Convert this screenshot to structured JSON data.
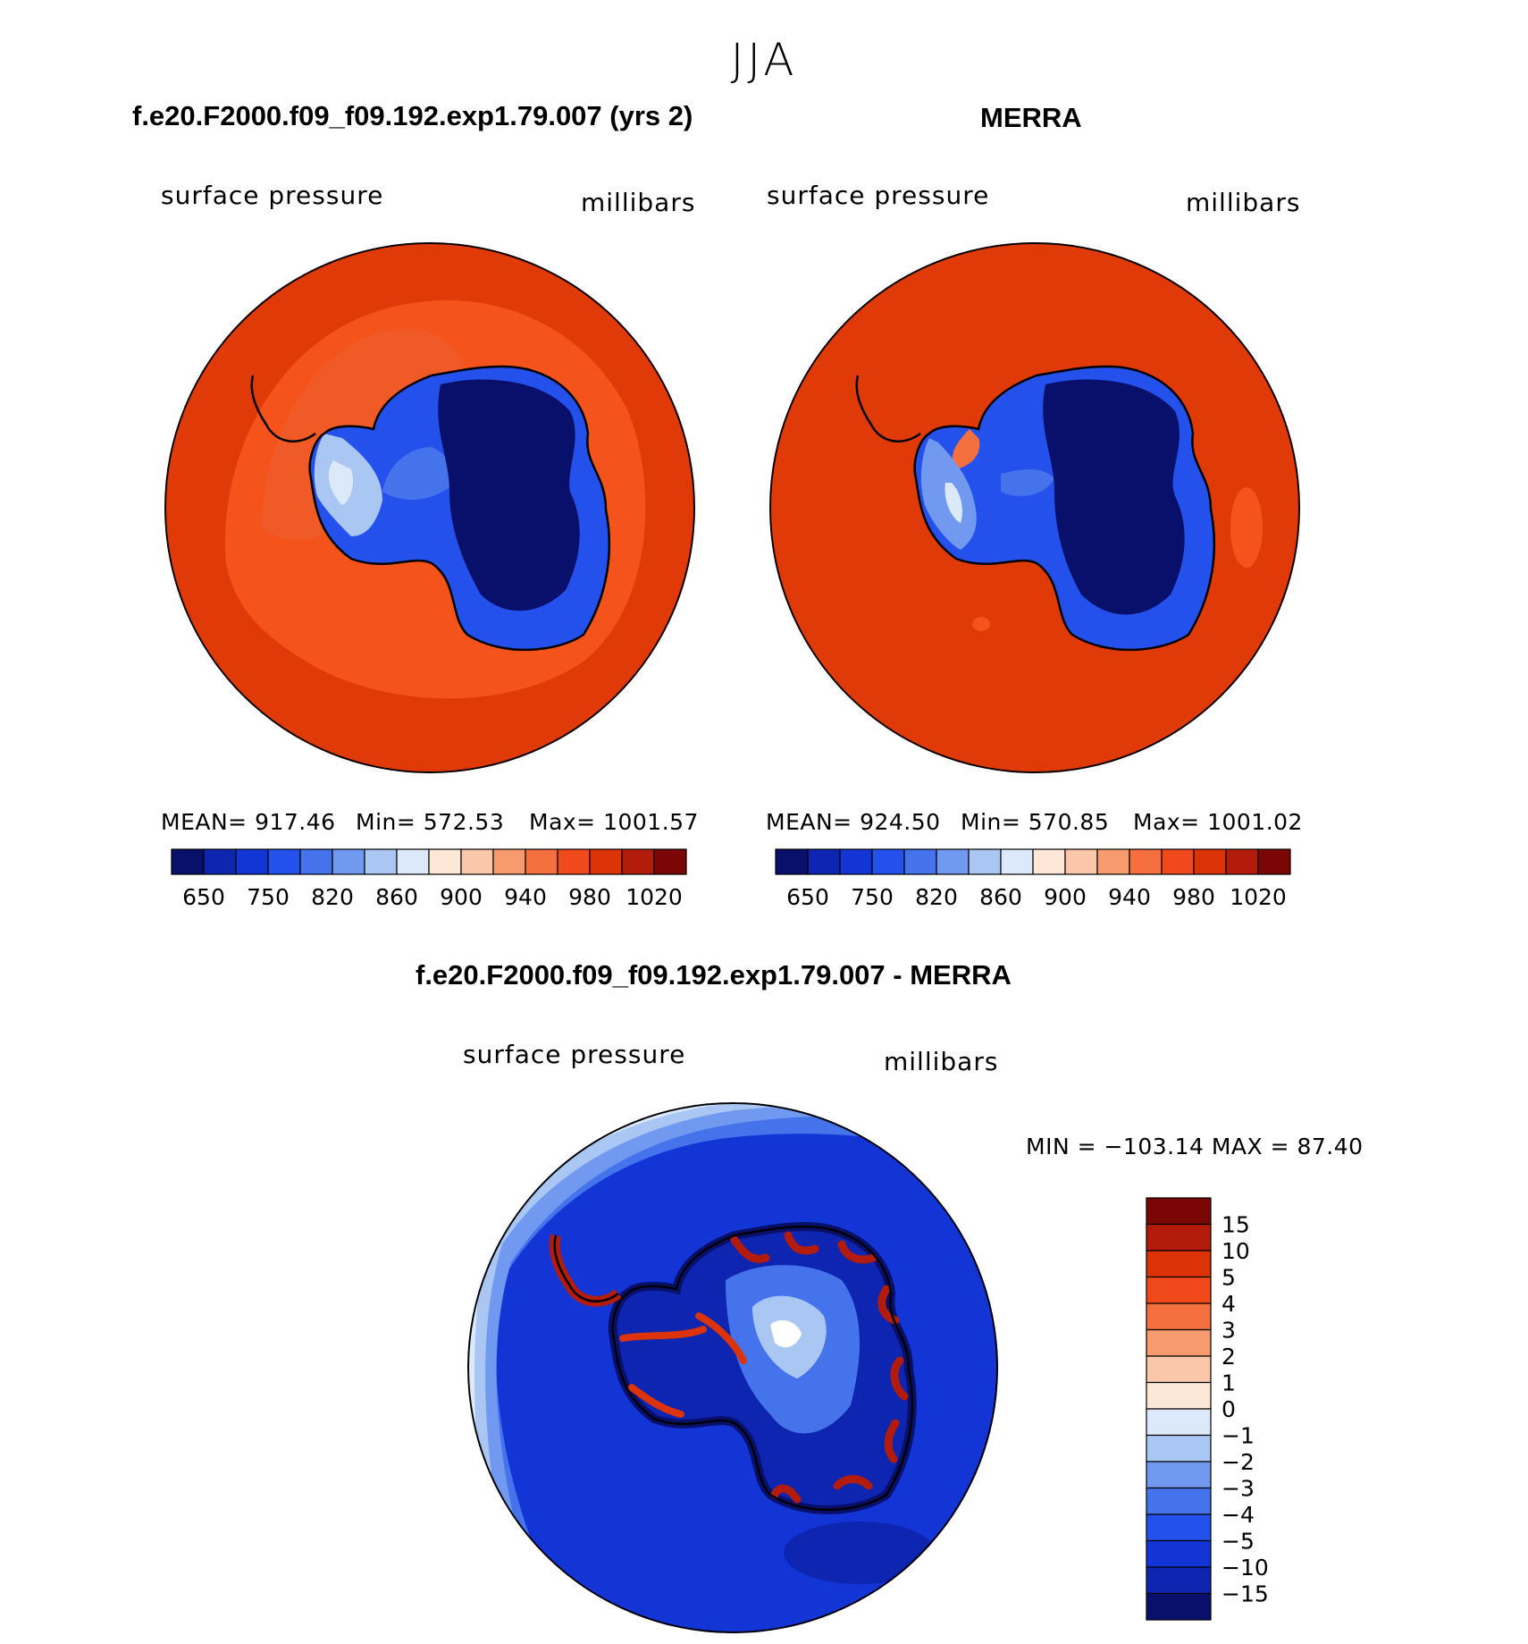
{
  "season": "JJA",
  "panels": [
    {
      "title": "f.e20.F2000.f09_f09.192.exp1.79.007 (yrs 2)",
      "left_label": "surface pressure",
      "right_label": "millibars",
      "stats": {
        "mean": "MEAN= 917.46",
        "min": "Min= 572.53",
        "max": "Max= 1001.57"
      }
    },
    {
      "title": "MERRA",
      "left_label": "surface pressure",
      "right_label": "millibars",
      "stats": {
        "mean": "MEAN= 924.50",
        "min": "Min= 570.85",
        "max": "Max= 1001.02"
      }
    },
    {
      "title": "f.e20.F2000.f09_f09.192.exp1.79.007 - MERRA",
      "left_label": "surface pressure",
      "right_label": "millibars",
      "stats": {
        "minmax": "MIN = −103.14 MAX =   87.40"
      }
    }
  ],
  "chart_data": [
    {
      "type": "heatmap",
      "projection": "south polar stereographic",
      "title": "f.e20.F2000.f09_f09.192.exp1.79.007 (yrs 2)",
      "variable": "surface pressure",
      "units": "millibars",
      "mean": 917.46,
      "min": 572.53,
      "max": 1001.57,
      "colorbar_ticks": [
        "650",
        "750",
        "820",
        "860",
        "900",
        "940",
        "980",
        "1020"
      ],
      "colorbar_colors": [
        "#08106b",
        "#0d25b0",
        "#1435d6",
        "#2451ec",
        "#4473ec",
        "#7199f0",
        "#a9c7f2",
        "#dbe9fb",
        "#fde7d6",
        "#fbc7aa",
        "#f79b6e",
        "#f5703f",
        "#f04a1c",
        "#dc3408",
        "#b31b0a",
        "#7a0606"
      ]
    },
    {
      "type": "heatmap",
      "projection": "south polar stereographic",
      "title": "MERRA",
      "variable": "surface pressure",
      "units": "millibars",
      "mean": 924.5,
      "min": 570.85,
      "max": 1001.02,
      "colorbar_ticks": [
        "650",
        "750",
        "820",
        "860",
        "900",
        "940",
        "980",
        "1020"
      ],
      "colorbar_colors": [
        "#08106b",
        "#0d25b0",
        "#1435d6",
        "#2451ec",
        "#4473ec",
        "#7199f0",
        "#a9c7f2",
        "#dbe9fb",
        "#fde7d6",
        "#fbc7aa",
        "#f79b6e",
        "#f5703f",
        "#f04a1c",
        "#dc3408",
        "#b31b0a",
        "#7a0606"
      ]
    },
    {
      "type": "heatmap",
      "projection": "south polar stereographic",
      "title": "f.e20.F2000.f09_f09.192.exp1.79.007 - MERRA",
      "variable": "surface pressure",
      "units": "millibars",
      "min": -103.14,
      "max": 87.4,
      "colorbar_ticks": [
        "15",
        "10",
        "5",
        "4",
        "3",
        "2",
        "1",
        "0",
        "−1",
        "−2",
        "−3",
        "−4",
        "−5",
        "−10",
        "−15"
      ],
      "colorbar_colors": [
        "#7a0606",
        "#b31b0a",
        "#dc3408",
        "#f04a1c",
        "#f5703f",
        "#f79b6e",
        "#fbc7aa",
        "#fde7d6",
        "#dbe9fb",
        "#a9c7f2",
        "#7199f0",
        "#4473ec",
        "#2451ec",
        "#1435d6",
        "#0d25b0",
        "#08106b"
      ]
    }
  ]
}
